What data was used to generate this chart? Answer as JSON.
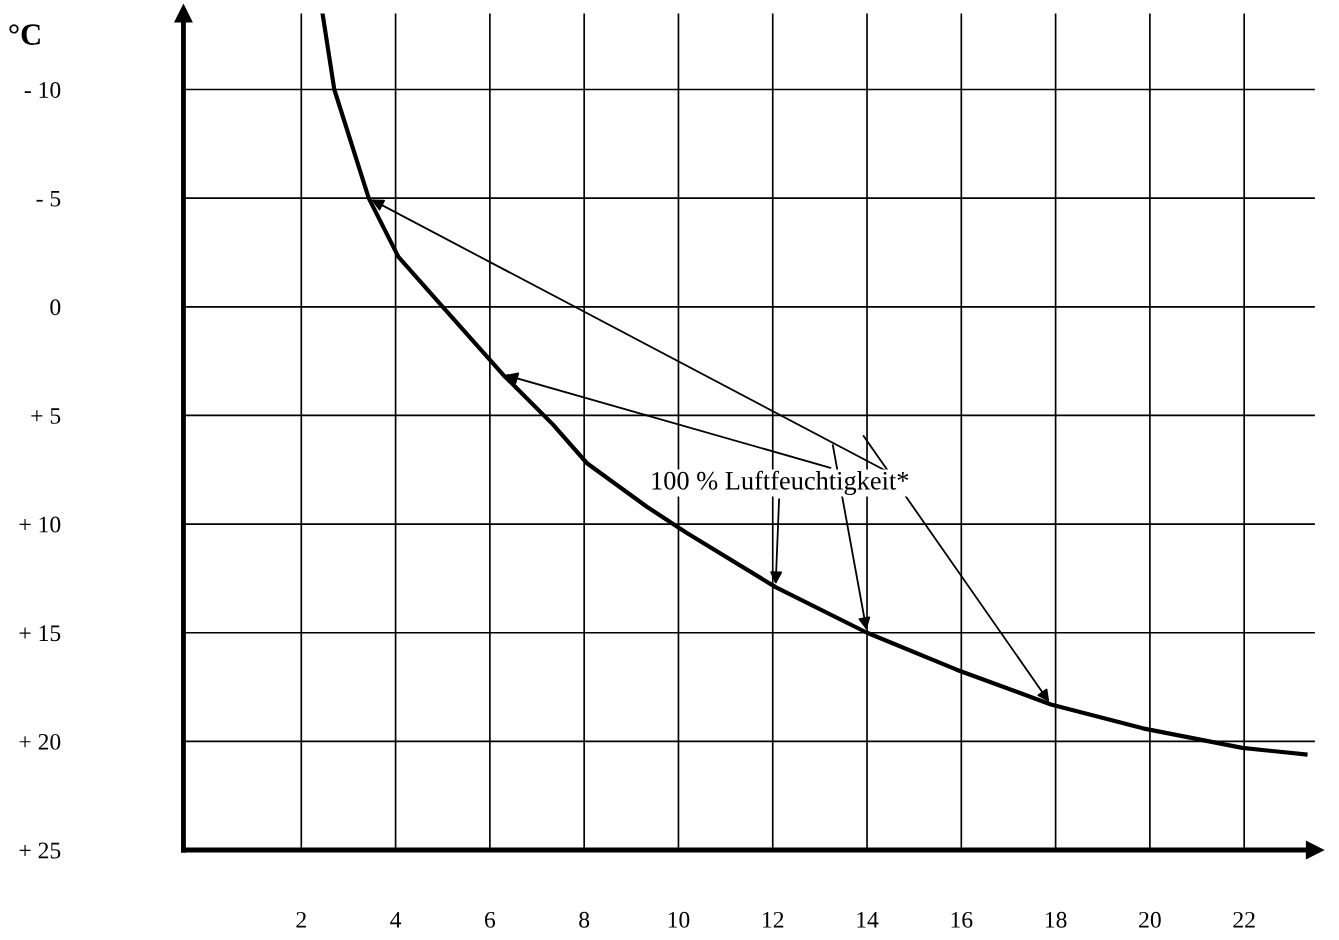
{
  "chart_data": {
    "type": "line",
    "ylabel": "°C",
    "x": [
      2.45,
      2.7,
      3.43,
      4.06,
      5.0,
      6.27,
      7.33,
      8.06,
      9.33,
      10.17,
      12.06,
      14.0,
      15.9,
      17.9,
      19.85,
      21.96,
      23.3
    ],
    "series": [
      {
        "color": "#000000",
        "values": [
          -13.5,
          -10,
          -5,
          -2.3,
          0,
          3.1,
          5.4,
          7.2,
          9.2,
          10.4,
          12.9,
          15,
          16.7,
          18.3,
          19.4,
          20.3,
          20.6
        ]
      }
    ],
    "annotations": [
      {
        "text": "100 % Luftfeuchtigkeit*",
        "x": 12.06,
        "y": 12.9
      }
    ],
    "xlim": [
      -0.5,
      23.5
    ],
    "ylim": [
      25,
      -13.5
    ],
    "xticks": [
      2,
      4,
      6,
      8,
      10,
      12,
      14,
      16,
      18,
      20,
      22
    ],
    "yticks": [
      {
        "value": -10,
        "label": "- 10"
      },
      {
        "value": -5,
        "label": "- 5"
      },
      0,
      {
        "value": 5,
        "label": "+ 5"
      },
      {
        "value": 10,
        "label": "+ 10"
      },
      {
        "value": 15,
        "label": "+ 15"
      },
      {
        "value": 20,
        "label": "+ 20"
      },
      {
        "value": 25,
        "label": "+ 25"
      }
    ],
    "grid": true,
    "legend": false,
    "marker": "none",
    "line_style": "solid"
  }
}
